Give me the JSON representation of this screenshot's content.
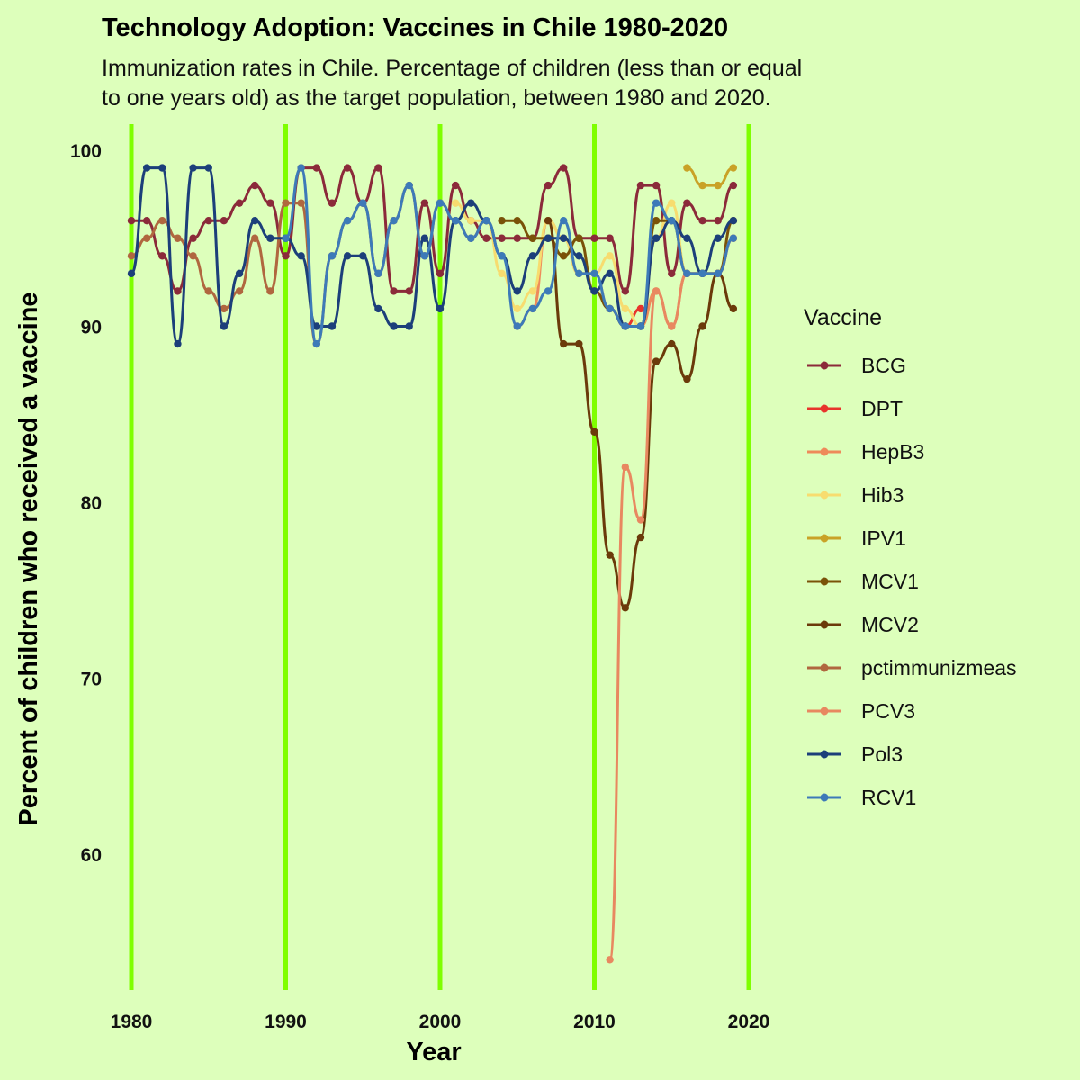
{
  "chart_data": {
    "type": "line",
    "title": "Technology Adoption: Vaccines in Chile 1980-2020",
    "subtitle_lines": [
      "Immunization rates in Chile. Percentage of children (less than or equal",
      "to one years old) as the target population, between 1980 and 2020."
    ],
    "xlabel": "Year",
    "ylabel": "Percent of children who received a vaccine",
    "xlim": [
      1980,
      2019
    ],
    "ylim": [
      53,
      100
    ],
    "x_ticks": [
      1980,
      1990,
      2000,
      2010,
      2020
    ],
    "y_ticks": [
      60,
      70,
      80,
      90,
      100
    ],
    "decade_line_color": "#7fff00",
    "legend": {
      "title": "Vaccine",
      "placement": "right"
    },
    "series": [
      {
        "name": "BCG",
        "color": "#8b2a3a",
        "x": [
          1980,
          1981,
          1982,
          1983,
          1984,
          1985,
          1986,
          1987,
          1988,
          1989,
          1990,
          1991,
          1992,
          1993,
          1994,
          1995,
          1996,
          1997,
          1998,
          1999,
          2000,
          2001,
          2002,
          2003,
          2004,
          2005,
          2006,
          2007,
          2008,
          2009,
          2010,
          2011,
          2012,
          2013,
          2014,
          2015,
          2016,
          2017,
          2018,
          2019
        ],
        "y": [
          96,
          96,
          94,
          92,
          95,
          96,
          96,
          97,
          98,
          97,
          94,
          99,
          99,
          97,
          99,
          97,
          99,
          92,
          92,
          97,
          93,
          98,
          96,
          95,
          95,
          95,
          95,
          98,
          99,
          95,
          95,
          95,
          92,
          98,
          98,
          93,
          97,
          96,
          96,
          98
        ]
      },
      {
        "name": "DPT",
        "color": "#e8342c",
        "x": [
          2012,
          2013
        ],
        "y": [
          90,
          91
        ]
      },
      {
        "name": "HepB3",
        "color": "#ee8a5a",
        "x": [
          2005,
          2006,
          2007,
          2008,
          2009,
          2010,
          2011,
          2012,
          2013,
          2014,
          2015,
          2016,
          2017,
          2018,
          2019
        ],
        "y": [
          90,
          91,
          96,
          95,
          93,
          93,
          91,
          90,
          90,
          92,
          90,
          93,
          93,
          93,
          95
        ]
      },
      {
        "name": "Hib3",
        "color": "#f7dc6f",
        "x": [
          2001,
          2002,
          2003,
          2004,
          2005,
          2006,
          2007,
          2008,
          2009,
          2010,
          2011,
          2012,
          2013,
          2014,
          2015,
          2016,
          2017,
          2018,
          2019
        ],
        "y": [
          97,
          96,
          96,
          93,
          91,
          92,
          96,
          95,
          93,
          93,
          94,
          91,
          90,
          95,
          97,
          93,
          93,
          93,
          95
        ]
      },
      {
        "name": "IPV1",
        "color": "#c9a227",
        "x": [
          2016,
          2017,
          2018,
          2019
        ],
        "y": [
          99,
          98,
          98,
          99
        ]
      },
      {
        "name": "MCV1",
        "color": "#7a5208",
        "x": [
          2004,
          2005,
          2006,
          2007,
          2008,
          2009,
          2010,
          2011,
          2012,
          2013,
          2014,
          2015,
          2016,
          2017,
          2018,
          2019
        ],
        "y": [
          96,
          96,
          95,
          95,
          94,
          95,
          92,
          91,
          90,
          90,
          96,
          96,
          93,
          93,
          93,
          96
        ]
      },
      {
        "name": "MCV2",
        "color": "#6b3a0a",
        "x": [
          2007,
          2008,
          2009,
          2010,
          2011,
          2012,
          2013,
          2014,
          2015,
          2016,
          2017,
          2018,
          2019
        ],
        "y": [
          96,
          89,
          89,
          84,
          77,
          74,
          78,
          88,
          89,
          87,
          90,
          93,
          91
        ]
      },
      {
        "name": "pctimmunizmeas",
        "color": "#b0673f",
        "x": [
          1980,
          1981,
          1982,
          1983,
          1984,
          1985,
          1986,
          1987,
          1988,
          1989,
          1990,
          1991,
          1992,
          1993,
          1994,
          1995,
          1996,
          1997,
          1998,
          1999,
          2000,
          2001,
          2002,
          2003
        ],
        "y": [
          94,
          95,
          96,
          95,
          94,
          92,
          91,
          92,
          95,
          92,
          97,
          97,
          89,
          94,
          96,
          97,
          93,
          96,
          98,
          94,
          97,
          96,
          95,
          96
        ]
      },
      {
        "name": "PCV3",
        "color": "#e88860",
        "x": [
          2011,
          2012,
          2013,
          2014,
          2015,
          2016,
          2017,
          2018,
          2019
        ],
        "y": [
          54,
          82,
          79,
          92,
          90,
          93,
          93,
          93,
          95
        ]
      },
      {
        "name": "Pol3",
        "color": "#1c3f7a",
        "x": [
          1980,
          1981,
          1982,
          1983,
          1984,
          1985,
          1986,
          1987,
          1988,
          1989,
          1990,
          1991,
          1992,
          1993,
          1994,
          1995,
          1996,
          1997,
          1998,
          1999,
          2000,
          2001,
          2002,
          2003,
          2004,
          2005,
          2006,
          2007,
          2008,
          2009,
          2010,
          2011,
          2012,
          2013,
          2014,
          2015,
          2016,
          2017,
          2018,
          2019
        ],
        "y": [
          93,
          99,
          99,
          89,
          99,
          99,
          90,
          93,
          96,
          95,
          95,
          94,
          90,
          90,
          94,
          94,
          91,
          90,
          90,
          95,
          91,
          96,
          97,
          96,
          94,
          92,
          94,
          95,
          95,
          94,
          92,
          93,
          90,
          90,
          95,
          96,
          95,
          93,
          95,
          96
        ]
      },
      {
        "name": "RCV1",
        "color": "#3d7ab8",
        "x": [
          1990,
          1991,
          1992,
          1993,
          1994,
          1995,
          1996,
          1997,
          1998,
          1999,
          2000,
          2001,
          2002,
          2003,
          2004,
          2005,
          2006,
          2007,
          2008,
          2009,
          2010,
          2011,
          2012,
          2013,
          2014,
          2015,
          2016,
          2017,
          2018,
          2019
        ],
        "y": [
          95,
          99,
          89,
          94,
          96,
          97,
          93,
          96,
          98,
          94,
          97,
          96,
          95,
          96,
          94,
          90,
          91,
          92,
          96,
          93,
          93,
          91,
          90,
          90,
          97,
          96,
          93,
          93,
          93,
          95
        ]
      }
    ]
  }
}
